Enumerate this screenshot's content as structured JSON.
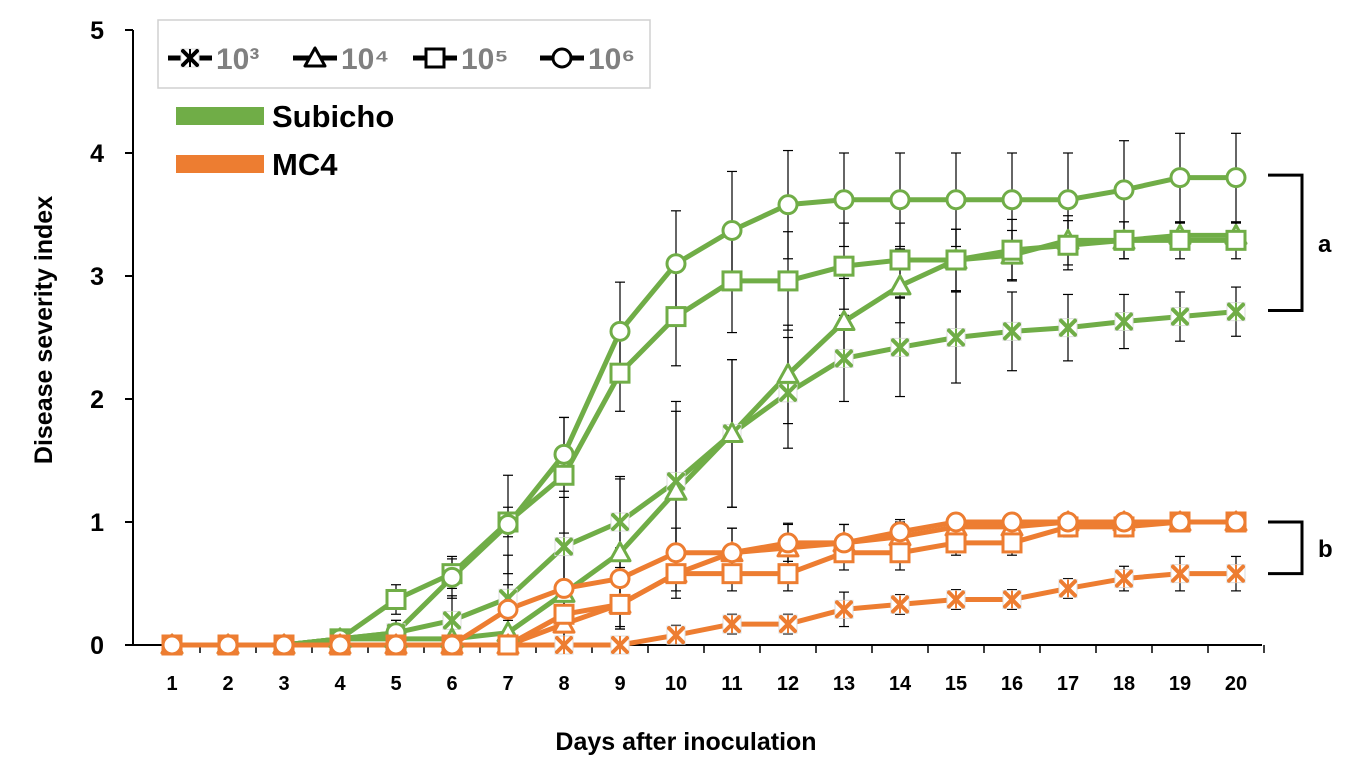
{
  "chart_data": {
    "type": "line",
    "xlabel": "Days after inoculation",
    "ylabel": "Disease severity index",
    "ylim": [
      0,
      5
    ],
    "yticks": [
      "0",
      "1",
      "2",
      "3",
      "4",
      "5"
    ],
    "x": [
      1,
      2,
      3,
      4,
      5,
      6,
      7,
      8,
      9,
      10,
      11,
      12,
      13,
      14,
      15,
      16,
      17,
      18,
      19,
      20
    ],
    "xtick_labels": [
      "1",
      "2",
      "3",
      "4",
      "5",
      "6",
      "7",
      "8",
      "9",
      "10",
      "11",
      "12",
      "13",
      "14",
      "15",
      "16",
      "17",
      "18",
      "19",
      "20"
    ],
    "marker_legend": [
      {
        "marker": "x",
        "label": "10³"
      },
      {
        "marker": "triangle",
        "label": "10⁴"
      },
      {
        "marker": "square",
        "label": "10⁵"
      },
      {
        "marker": "circle",
        "label": "10⁶"
      }
    ],
    "color_legend": [
      {
        "name": "Subicho",
        "color": "#70ad47"
      },
      {
        "name": "MC4",
        "color": "#ed7d31"
      }
    ],
    "annotations": [
      {
        "label": "a",
        "range": [
          2.72,
          3.82
        ]
      },
      {
        "label": "b",
        "range": [
          0.58,
          1.0
        ]
      }
    ],
    "series": [
      {
        "name": "Subicho 10³",
        "cultivar": "Subicho",
        "marker": "x",
        "values": [
          0,
          0,
          0,
          0.05,
          0.1,
          0.2,
          0.38,
          0.8,
          1.0,
          1.33,
          1.72,
          2.05,
          2.33,
          2.42,
          2.5,
          2.55,
          2.58,
          2.63,
          2.67,
          2.71
        ],
        "errors": [
          0,
          0,
          0,
          0,
          0.1,
          0.2,
          0.35,
          0.4,
          0.37,
          0.65,
          0.6,
          0.45,
          0.35,
          0.4,
          0.37,
          0.32,
          0.27,
          0.22,
          0.2,
          0.2
        ]
      },
      {
        "name": "Subicho 10⁴",
        "cultivar": "Subicho",
        "marker": "triangle",
        "values": [
          0,
          0,
          0,
          0.05,
          0.05,
          0.05,
          0.1,
          0.42,
          0.75,
          1.25,
          1.72,
          2.2,
          2.63,
          2.92,
          3.13,
          3.17,
          3.29,
          3.29,
          3.33,
          3.33
        ],
        "errors": [
          0,
          0,
          0,
          0,
          0,
          0,
          0.1,
          0.42,
          0.6,
          0.65,
          0.6,
          0.4,
          0.35,
          0.3,
          0.25,
          0.2,
          0.2,
          0.15,
          0.1,
          0.1
        ]
      },
      {
        "name": "Subicho 10⁵",
        "cultivar": "Subicho",
        "marker": "square",
        "values": [
          0,
          0,
          0,
          0.05,
          0.37,
          0.58,
          1.0,
          1.38,
          2.21,
          2.67,
          2.96,
          2.96,
          3.08,
          3.13,
          3.13,
          3.21,
          3.25,
          3.29,
          3.29,
          3.29
        ],
        "errors": [
          0,
          0,
          0,
          0,
          0.12,
          0.12,
          0.12,
          0.47,
          0.31,
          0.4,
          0.42,
          0.4,
          0.35,
          0.3,
          0.25,
          0.25,
          0.2,
          0.15,
          0.15,
          0.15
        ]
      },
      {
        "name": "Subicho 10⁶",
        "cultivar": "Subicho",
        "marker": "circle",
        "values": [
          0,
          0,
          0,
          0.05,
          0.1,
          0.55,
          0.98,
          1.55,
          2.55,
          3.1,
          3.37,
          3.58,
          3.62,
          3.62,
          3.62,
          3.62,
          3.62,
          3.7,
          3.8,
          3.8
        ],
        "errors": [
          0,
          0,
          0,
          0,
          0.1,
          0.17,
          0.4,
          0.3,
          0.4,
          0.43,
          0.48,
          0.44,
          0.38,
          0.38,
          0.38,
          0.38,
          0.38,
          0.4,
          0.36,
          0.36
        ]
      },
      {
        "name": "MC4 10³",
        "cultivar": "MC4",
        "marker": "x",
        "values": [
          0,
          0,
          0,
          0,
          0,
          0,
          0,
          0,
          0,
          0.08,
          0.17,
          0.17,
          0.29,
          0.33,
          0.37,
          0.37,
          0.46,
          0.54,
          0.58,
          0.58
        ],
        "errors": [
          0,
          0,
          0,
          0,
          0,
          0,
          0,
          0,
          0,
          0.08,
          0.08,
          0.08,
          0.14,
          0.08,
          0.08,
          0.08,
          0.08,
          0.1,
          0.14,
          0.14
        ]
      },
      {
        "name": "MC4 10⁴",
        "cultivar": "MC4",
        "marker": "triangle",
        "values": [
          0,
          0,
          0,
          0,
          0,
          0,
          0,
          0.17,
          0.33,
          0.58,
          0.75,
          0.79,
          0.83,
          0.88,
          0.96,
          0.96,
          1.0,
          1.0,
          1.0,
          1.0
        ],
        "errors": [
          0,
          0,
          0,
          0,
          0,
          0,
          0,
          0.14,
          0.2,
          0.2,
          0.2,
          0.2,
          0.15,
          0.12,
          0.08,
          0.08,
          0,
          0,
          0,
          0
        ]
      },
      {
        "name": "MC4 10⁵",
        "cultivar": "MC4",
        "marker": "square",
        "values": [
          0,
          0,
          0,
          0,
          0,
          0,
          0,
          0.25,
          0.33,
          0.58,
          0.58,
          0.58,
          0.75,
          0.75,
          0.83,
          0.83,
          0.96,
          0.96,
          1.0,
          1.0
        ],
        "errors": [
          0,
          0,
          0,
          0,
          0,
          0,
          0,
          0.2,
          0.2,
          0.14,
          0.14,
          0.14,
          0.14,
          0.14,
          0.1,
          0.1,
          0.08,
          0.08,
          0,
          0
        ]
      },
      {
        "name": "MC4 10⁶",
        "cultivar": "MC4",
        "marker": "circle",
        "values": [
          0,
          0,
          0,
          0,
          0,
          0,
          0.29,
          0.46,
          0.54,
          0.75,
          0.75,
          0.83,
          0.83,
          0.92,
          1.0,
          1.0,
          1.0,
          1.0,
          1.0,
          1.0
        ],
        "errors": [
          0,
          0,
          0,
          0,
          0,
          0,
          0.2,
          0.27,
          0.25,
          0.2,
          0.2,
          0.15,
          0.15,
          0.1,
          0,
          0,
          0,
          0,
          0,
          0
        ]
      }
    ]
  }
}
